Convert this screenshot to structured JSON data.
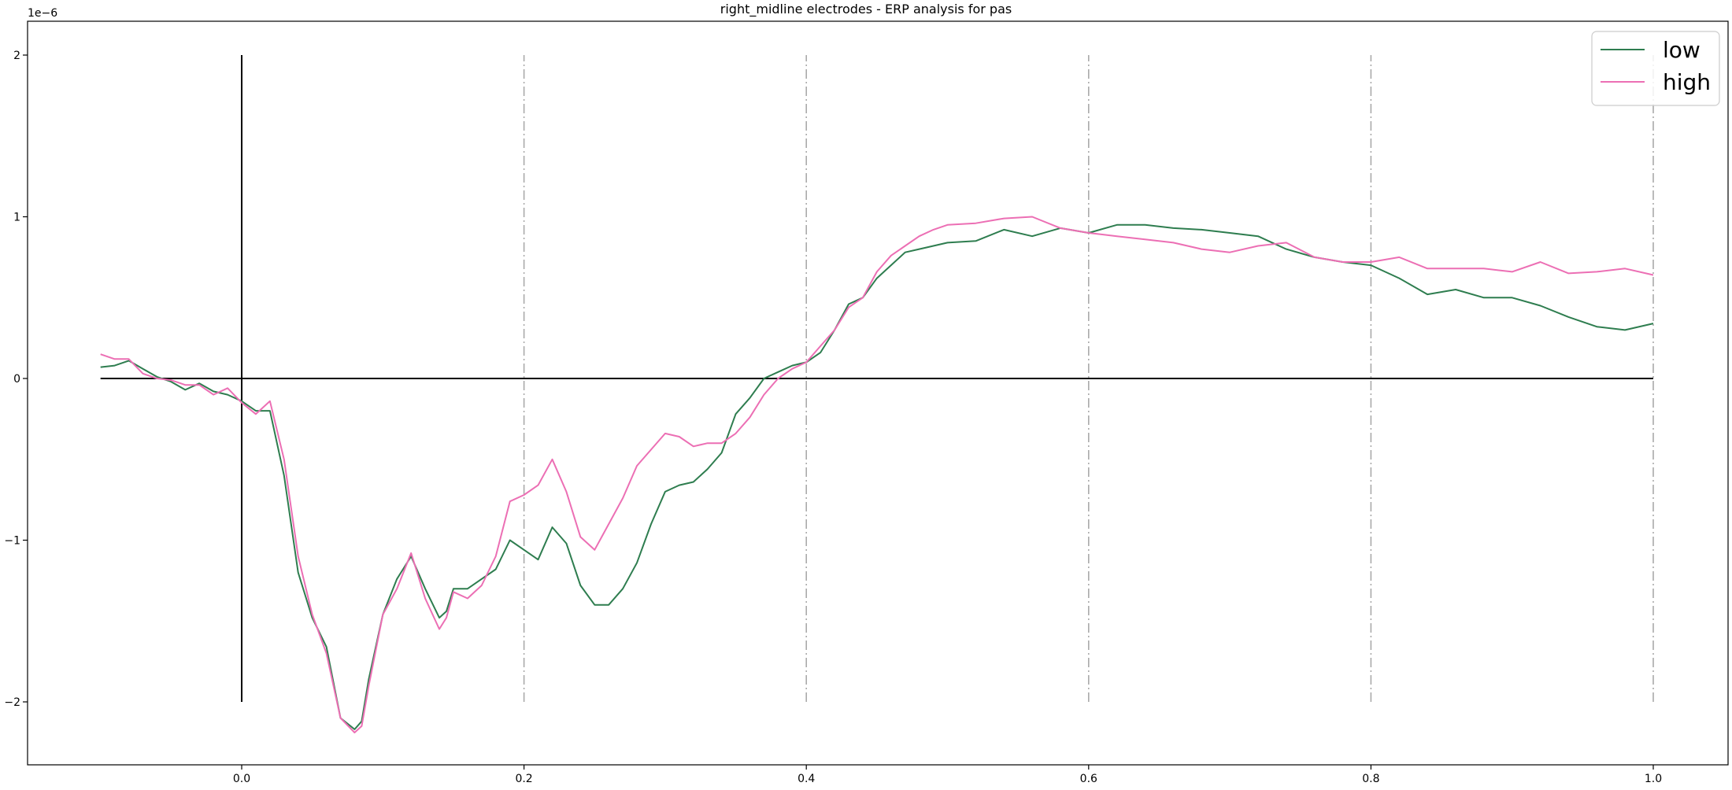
{
  "chart_data": {
    "type": "line",
    "title": "right_midline electrodes - ERP analysis for pas",
    "xlabel": "",
    "ylabel": "",
    "y_exponent_label": "1e−6",
    "xlim": [
      -0.1,
      1.0
    ],
    "ylim": [
      -2.35,
      2.2
    ],
    "x_ticks": [
      0.0,
      0.2,
      0.4,
      0.6,
      0.8,
      1.0
    ],
    "x_tick_labels": [
      "0.0",
      "0.2",
      "0.4",
      "0.6",
      "0.8",
      "1.0"
    ],
    "y_ticks": [
      -2,
      -1,
      0,
      1,
      2
    ],
    "y_tick_labels": [
      "−2",
      "−1",
      "0",
      "1",
      "2"
    ],
    "grid": false,
    "legend_position": "top-right",
    "reference_lines": {
      "horizontal_zero": {
        "y": 0,
        "x_from": -0.1,
        "x_to": 1.0,
        "color": "#000000"
      },
      "onset": {
        "x": 0.0,
        "y_from": -2,
        "y_to": 2,
        "color": "#000000"
      },
      "markers": {
        "x": [
          0.2,
          0.4,
          0.6,
          0.8,
          1.0
        ],
        "y_from": -2,
        "y_to": 2,
        "color": "#aaaaaa",
        "style": "dash-dot"
      }
    },
    "series": [
      {
        "name": "low",
        "color": "#2e7d4f",
        "x": [
          -0.1,
          -0.09,
          -0.08,
          -0.07,
          -0.06,
          -0.05,
          -0.04,
          -0.03,
          -0.02,
          -0.01,
          0.0,
          0.01,
          0.02,
          0.03,
          0.04,
          0.05,
          0.06,
          0.07,
          0.08,
          0.085,
          0.09,
          0.1,
          0.11,
          0.12,
          0.13,
          0.14,
          0.145,
          0.15,
          0.16,
          0.17,
          0.18,
          0.19,
          0.2,
          0.21,
          0.22,
          0.23,
          0.24,
          0.25,
          0.26,
          0.27,
          0.28,
          0.29,
          0.3,
          0.31,
          0.32,
          0.33,
          0.34,
          0.35,
          0.36,
          0.37,
          0.38,
          0.39,
          0.4,
          0.41,
          0.42,
          0.43,
          0.44,
          0.45,
          0.46,
          0.47,
          0.48,
          0.49,
          0.5,
          0.52,
          0.54,
          0.56,
          0.58,
          0.6,
          0.62,
          0.64,
          0.66,
          0.68,
          0.7,
          0.72,
          0.74,
          0.76,
          0.78,
          0.8,
          0.82,
          0.84,
          0.86,
          0.88,
          0.9,
          0.92,
          0.94,
          0.96,
          0.98,
          1.0
        ],
        "y": [
          0.07,
          0.08,
          0.11,
          0.06,
          0.01,
          -0.02,
          -0.07,
          -0.03,
          -0.08,
          -0.1,
          -0.14,
          -0.2,
          -0.2,
          -0.6,
          -1.2,
          -1.48,
          -1.66,
          -2.1,
          -2.17,
          -2.12,
          -1.86,
          -1.46,
          -1.24,
          -1.1,
          -1.3,
          -1.48,
          -1.44,
          -1.3,
          -1.3,
          -1.24,
          -1.18,
          -1.0,
          -1.06,
          -1.12,
          -0.92,
          -1.02,
          -1.28,
          -1.4,
          -1.4,
          -1.3,
          -1.14,
          -0.9,
          -0.7,
          -0.66,
          -0.64,
          -0.56,
          -0.46,
          -0.22,
          -0.12,
          0.0,
          0.04,
          0.08,
          0.1,
          0.16,
          0.3,
          0.46,
          0.5,
          0.62,
          0.7,
          0.78,
          0.8,
          0.82,
          0.84,
          0.85,
          0.92,
          0.88,
          0.93,
          0.9,
          0.95,
          0.95,
          0.93,
          0.92,
          0.9,
          0.88,
          0.8,
          0.75,
          0.72,
          0.7,
          0.62,
          0.52,
          0.55,
          0.5,
          0.5,
          0.45,
          0.38,
          0.32,
          0.3,
          0.34
        ]
      },
      {
        "name": "high",
        "color": "#ec6fb4",
        "x": [
          -0.1,
          -0.09,
          -0.08,
          -0.07,
          -0.06,
          -0.05,
          -0.04,
          -0.03,
          -0.02,
          -0.01,
          0.0,
          0.01,
          0.02,
          0.03,
          0.04,
          0.05,
          0.06,
          0.07,
          0.08,
          0.085,
          0.09,
          0.1,
          0.11,
          0.12,
          0.13,
          0.14,
          0.145,
          0.15,
          0.16,
          0.17,
          0.18,
          0.19,
          0.2,
          0.21,
          0.22,
          0.23,
          0.24,
          0.25,
          0.26,
          0.27,
          0.28,
          0.29,
          0.3,
          0.31,
          0.32,
          0.33,
          0.34,
          0.35,
          0.36,
          0.37,
          0.38,
          0.39,
          0.4,
          0.41,
          0.42,
          0.43,
          0.44,
          0.45,
          0.46,
          0.47,
          0.48,
          0.49,
          0.5,
          0.52,
          0.54,
          0.56,
          0.58,
          0.6,
          0.62,
          0.64,
          0.66,
          0.68,
          0.7,
          0.72,
          0.74,
          0.76,
          0.78,
          0.8,
          0.82,
          0.84,
          0.86,
          0.88,
          0.9,
          0.92,
          0.94,
          0.96,
          0.98,
          1.0
        ],
        "y": [
          0.15,
          0.12,
          0.12,
          0.03,
          0.0,
          -0.01,
          -0.04,
          -0.04,
          -0.1,
          -0.06,
          -0.15,
          -0.22,
          -0.14,
          -0.5,
          -1.1,
          -1.46,
          -1.7,
          -2.1,
          -2.19,
          -2.15,
          -1.9,
          -1.46,
          -1.3,
          -1.08,
          -1.36,
          -1.55,
          -1.48,
          -1.32,
          -1.36,
          -1.28,
          -1.1,
          -0.76,
          -0.72,
          -0.66,
          -0.5,
          -0.7,
          -0.98,
          -1.06,
          -0.9,
          -0.74,
          -0.54,
          -0.44,
          -0.34,
          -0.36,
          -0.42,
          -0.4,
          -0.4,
          -0.34,
          -0.24,
          -0.1,
          0.0,
          0.06,
          0.1,
          0.2,
          0.3,
          0.44,
          0.5,
          0.66,
          0.76,
          0.82,
          0.88,
          0.92,
          0.95,
          0.96,
          0.99,
          1.0,
          0.93,
          0.9,
          0.88,
          0.86,
          0.84,
          0.8,
          0.78,
          0.82,
          0.84,
          0.75,
          0.72,
          0.72,
          0.75,
          0.68,
          0.68,
          0.68,
          0.66,
          0.72,
          0.65,
          0.66,
          0.68,
          0.64
        ]
      }
    ]
  }
}
